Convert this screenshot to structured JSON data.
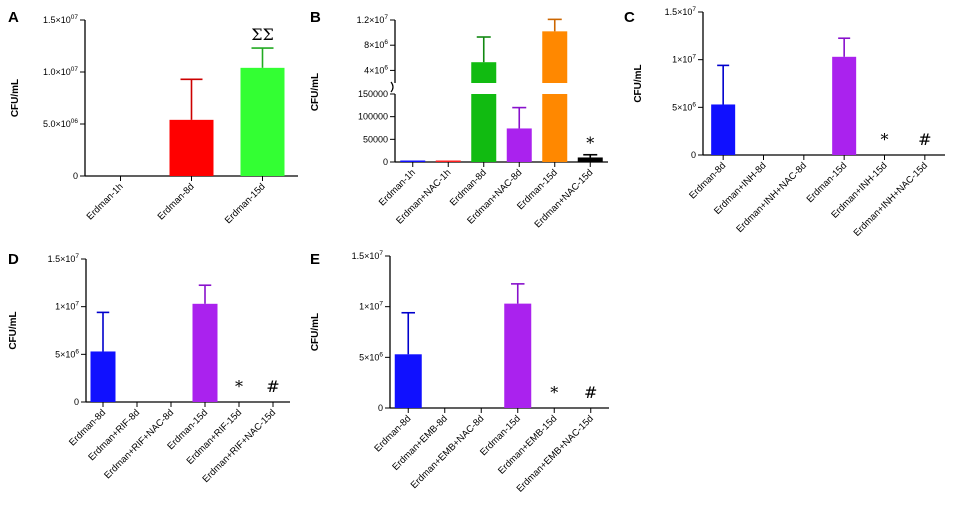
{
  "figure": {
    "panels": [
      {
        "id": "A",
        "label": "A"
      },
      {
        "id": "B",
        "label": "B"
      },
      {
        "id": "C",
        "label": "C"
      },
      {
        "id": "D",
        "label": "D"
      },
      {
        "id": "E",
        "label": "E"
      }
    ]
  },
  "chart_data": [
    {
      "panel": "A",
      "type": "bar",
      "ylabel": "CFU/mL",
      "ylim": [
        0,
        15000000
      ],
      "yticks": [
        0,
        5000000,
        10000000,
        15000000
      ],
      "ytick_labels": [
        {
          "mantissa": "0",
          "exponent": ""
        },
        {
          "mantissa": "5.0×10",
          "exponent": "06"
        },
        {
          "mantissa": "1.0×10",
          "exponent": "07"
        },
        {
          "mantissa": "1.5×10",
          "exponent": "07"
        }
      ],
      "categories": [
        "Erdman-1h",
        "Erdman-8d",
        "Erdman-15d"
      ],
      "values": [
        0,
        5400000,
        10400000
      ],
      "errors": [
        0,
        3900000,
        1900000
      ],
      "colors": [
        "#ff0000",
        "#ff0000",
        "#33ff33"
      ],
      "err_colors": [
        "#cc0000",
        "#cc0000",
        "#22aa22"
      ],
      "annotations": [
        {
          "category": 2,
          "text": "ΣΣ"
        }
      ]
    },
    {
      "panel": "B",
      "type": "bar",
      "ylabel": "CFU/mL",
      "broken_axis": true,
      "lower": {
        "ylim": [
          0,
          150000
        ],
        "yticks": [
          0,
          50000,
          100000,
          150000
        ],
        "ytick_labels": [
          "0",
          "50000",
          "100000",
          "150000"
        ]
      },
      "upper": {
        "ylim": [
          2000000,
          12000000
        ],
        "yticks": [
          4000000,
          8000000,
          12000000
        ],
        "ytick_labels": [
          {
            "mantissa": "4×10",
            "exponent": "6"
          },
          {
            "mantissa": "8×10",
            "exponent": "6"
          },
          {
            "mantissa": "1.2×10",
            "exponent": "7"
          }
        ]
      },
      "categories": [
        "Erdman-1h",
        "Erdman+NAC-1h",
        "Erdman-8d",
        "Erdman+NAC-8d",
        "Erdman-15d",
        "Erdman+NAC-15d"
      ],
      "values": [
        2000,
        2000,
        5300000,
        74000,
        10200000,
        10000
      ],
      "errors": [
        0,
        0,
        4000000,
        46000,
        1900000,
        6000
      ],
      "colors": [
        "#1010ff",
        "#ff2020",
        "#11bb11",
        "#aa22ee",
        "#ff8800",
        "#000000"
      ],
      "err_colors": [
        "#0000cc",
        "#cc0000",
        "#118811",
        "#8811cc",
        "#cc6600",
        "#000000"
      ],
      "annotations": [
        {
          "category": 5,
          "text": "*"
        }
      ]
    },
    {
      "panel": "C",
      "type": "bar",
      "ylabel": "CFU/mL",
      "ylim": [
        0,
        15000000
      ],
      "yticks": [
        0,
        5000000,
        10000000,
        15000000
      ],
      "ytick_labels": [
        {
          "mantissa": "0",
          "exponent": ""
        },
        {
          "mantissa": "5×10",
          "exponent": "6"
        },
        {
          "mantissa": "1×10",
          "exponent": "7"
        },
        {
          "mantissa": "1.5×10",
          "exponent": "7"
        }
      ],
      "categories": [
        "Erdman-8d",
        "Erdman+INH-8d",
        "Erdman+INH+NAC-8d",
        "Erdman-15d",
        "Erdman+INH-15d",
        "Erdman+INH+NAC-15d"
      ],
      "values": [
        5300000,
        0,
        0,
        10300000,
        0,
        0
      ],
      "errors": [
        4100000,
        0,
        0,
        1950000,
        0,
        0
      ],
      "colors": [
        "#1010ff",
        "#1010ff",
        "#1010ff",
        "#aa22ee",
        "#aa22ee",
        "#aa22ee"
      ],
      "err_colors": [
        "#0000cc",
        "#0000cc",
        "#0000cc",
        "#8811cc",
        "#8811cc",
        "#8811cc"
      ],
      "annotations": [
        {
          "category": 4,
          "text": "*"
        },
        {
          "category": 5,
          "text": "#"
        }
      ]
    },
    {
      "panel": "D",
      "type": "bar",
      "ylabel": "CFU/mL",
      "ylim": [
        0,
        15000000
      ],
      "yticks": [
        0,
        5000000,
        10000000,
        15000000
      ],
      "ytick_labels": [
        {
          "mantissa": "0",
          "exponent": ""
        },
        {
          "mantissa": "5×10",
          "exponent": "6"
        },
        {
          "mantissa": "1×10",
          "exponent": "7"
        },
        {
          "mantissa": "1.5×10",
          "exponent": "7"
        }
      ],
      "categories": [
        "Erdman-8d",
        "Erdman+RIF-8d",
        "Erdman+RIF+NAC-8d",
        "Erdman-15d",
        "Erdman+RIF-15d",
        "Erdman+RIF+NAC-15d"
      ],
      "values": [
        5300000,
        0,
        0,
        10300000,
        0,
        0
      ],
      "errors": [
        4100000,
        0,
        0,
        1950000,
        0,
        0
      ],
      "colors": [
        "#1010ff",
        "#1010ff",
        "#1010ff",
        "#aa22ee",
        "#aa22ee",
        "#aa22ee"
      ],
      "err_colors": [
        "#0000cc",
        "#0000cc",
        "#0000cc",
        "#8811cc",
        "#8811cc",
        "#8811cc"
      ],
      "annotations": [
        {
          "category": 4,
          "text": "*"
        },
        {
          "category": 5,
          "text": "#"
        }
      ]
    },
    {
      "panel": "E",
      "type": "bar",
      "ylabel": "CFU/mL",
      "ylim": [
        0,
        15000000
      ],
      "yticks": [
        0,
        5000000,
        10000000,
        15000000
      ],
      "ytick_labels": [
        {
          "mantissa": "0",
          "exponent": ""
        },
        {
          "mantissa": "5×10",
          "exponent": "6"
        },
        {
          "mantissa": "1×10",
          "exponent": "7"
        },
        {
          "mantissa": "1.5×10",
          "exponent": "7"
        }
      ],
      "categories": [
        "Erdman-8d",
        "Erdman+EMB-8d",
        "Erdman+EMB+NAC-8d",
        "Erdman-15d",
        "Erdman+EMB-15d",
        "Erdman+EMB+NAC-15d"
      ],
      "values": [
        5300000,
        0,
        0,
        10300000,
        0,
        0
      ],
      "errors": [
        4100000,
        0,
        0,
        1950000,
        0,
        0
      ],
      "colors": [
        "#1010ff",
        "#1010ff",
        "#1010ff",
        "#aa22ee",
        "#aa22ee",
        "#aa22ee"
      ],
      "err_colors": [
        "#0000cc",
        "#0000cc",
        "#0000cc",
        "#8811cc",
        "#8811cc",
        "#8811cc"
      ],
      "annotations": [
        {
          "category": 4,
          "text": "*"
        },
        {
          "category": 5,
          "text": "#"
        }
      ]
    }
  ]
}
